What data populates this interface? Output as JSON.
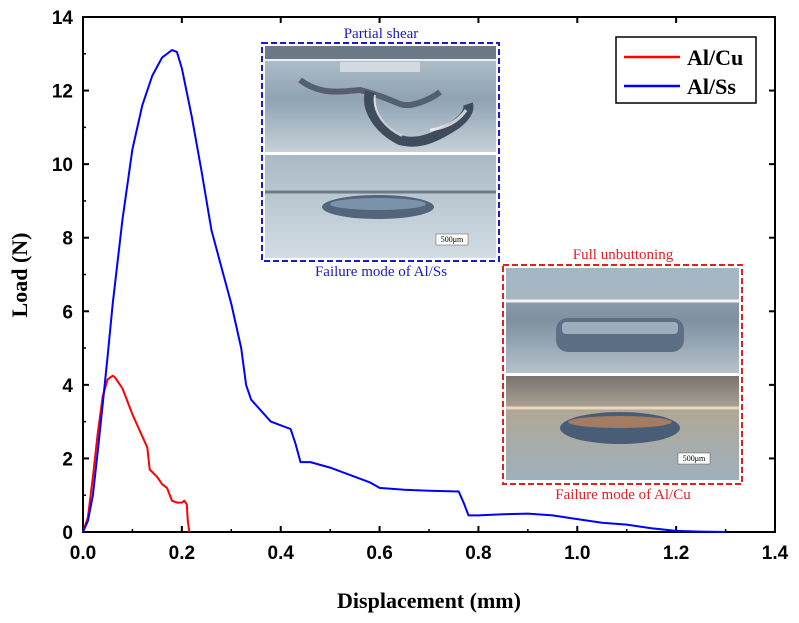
{
  "chart_data": {
    "type": "line",
    "xlabel": "Displacement (mm)",
    "ylabel": "Load (N)",
    "xlim": [
      0,
      1.4
    ],
    "ylim": [
      0,
      14
    ],
    "xticks": [
      "0.0",
      "0.2",
      "0.4",
      "0.6",
      "0.8",
      "1.0",
      "1.2",
      "1.4"
    ],
    "yticks": [
      "0",
      "2",
      "4",
      "6",
      "8",
      "10",
      "12",
      "14"
    ],
    "legend_position": "top-right",
    "series": [
      {
        "name": "Al/Cu",
        "color": "#ff0000",
        "x": [
          0.0,
          0.01,
          0.02,
          0.03,
          0.04,
          0.05,
          0.06,
          0.065,
          0.08,
          0.1,
          0.12,
          0.13,
          0.135,
          0.15,
          0.16,
          0.17,
          0.18,
          0.19,
          0.2,
          0.205,
          0.21,
          0.212,
          0.215
        ],
        "y": [
          0.0,
          0.4,
          1.5,
          2.7,
          3.7,
          4.15,
          4.25,
          4.2,
          3.9,
          3.2,
          2.6,
          2.3,
          1.7,
          1.5,
          1.3,
          1.2,
          0.85,
          0.8,
          0.8,
          0.85,
          0.75,
          0.3,
          0.0
        ]
      },
      {
        "name": "Al/Ss",
        "color": "#0000ff",
        "x": [
          0.0,
          0.01,
          0.02,
          0.03,
          0.04,
          0.05,
          0.06,
          0.08,
          0.1,
          0.12,
          0.14,
          0.16,
          0.18,
          0.19,
          0.2,
          0.22,
          0.24,
          0.26,
          0.28,
          0.3,
          0.32,
          0.33,
          0.34,
          0.36,
          0.38,
          0.4,
          0.42,
          0.43,
          0.44,
          0.46,
          0.5,
          0.55,
          0.58,
          0.6,
          0.65,
          0.7,
          0.76,
          0.77,
          0.78,
          0.8,
          0.85,
          0.9,
          0.95,
          1.0,
          1.05,
          1.1,
          1.15,
          1.2,
          1.25,
          1.3
        ],
        "y": [
          0.0,
          0.3,
          1.0,
          2.2,
          3.5,
          4.8,
          6.2,
          8.5,
          10.4,
          11.6,
          12.4,
          12.9,
          13.1,
          13.05,
          12.6,
          11.3,
          9.8,
          8.2,
          7.2,
          6.2,
          5.0,
          4.0,
          3.6,
          3.3,
          3.0,
          2.9,
          2.8,
          2.4,
          1.9,
          1.9,
          1.75,
          1.5,
          1.35,
          1.2,
          1.15,
          1.12,
          1.1,
          0.8,
          0.45,
          0.45,
          0.48,
          0.5,
          0.45,
          0.35,
          0.25,
          0.2,
          0.1,
          0.03,
          0.01,
          0.0
        ]
      }
    ],
    "insets": [
      {
        "title": "Partial shear",
        "caption": "Failure mode of Al/Ss",
        "scale_bar": "500μm",
        "border_color": "#1a1acc"
      },
      {
        "title": "Full unbuttoning",
        "caption": "Failure mode of Al/Cu",
        "scale_bar": "500μm",
        "border_color": "#dd2222"
      }
    ]
  }
}
